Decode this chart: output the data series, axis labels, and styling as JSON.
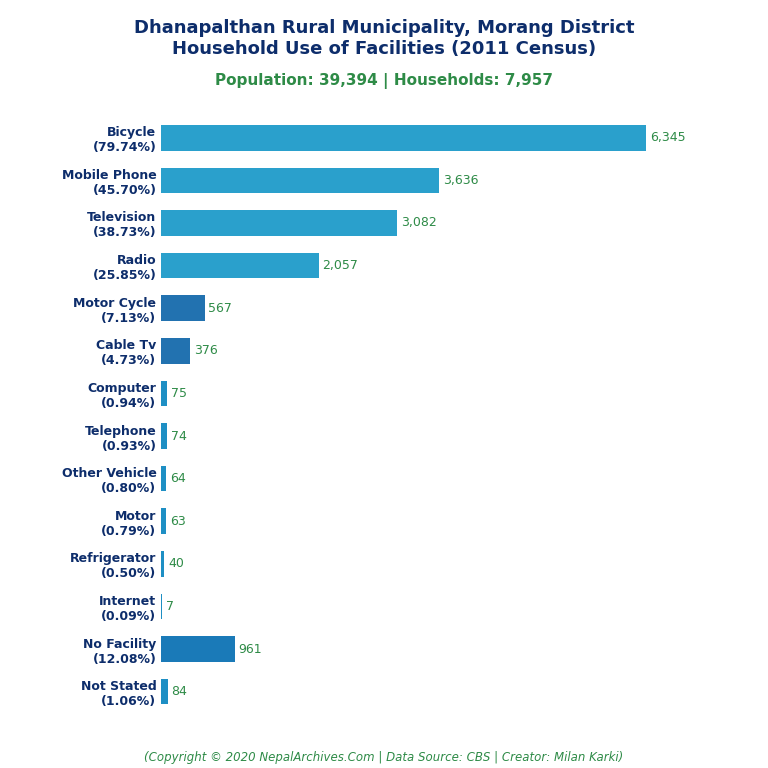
{
  "title_line1": "Dhanapalthan Rural Municipality, Morang District",
  "title_line2": "Household Use of Facilities (2011 Census)",
  "subtitle": "Population: 39,394 | Households: 7,957",
  "footer": "(Copyright © 2020 NepalArchives.Com | Data Source: CBS | Creator: Milan Karki)",
  "categories": [
    "Not Stated\n(1.06%)",
    "No Facility\n(12.08%)",
    "Internet\n(0.09%)",
    "Refrigerator\n(0.50%)",
    "Motor\n(0.79%)",
    "Other Vehicle\n(0.80%)",
    "Telephone\n(0.93%)",
    "Computer\n(0.94%)",
    "Cable Tv\n(4.73%)",
    "Motor Cycle\n(7.13%)",
    "Radio\n(25.85%)",
    "Television\n(38.73%)",
    "Mobile Phone\n(45.70%)",
    "Bicycle\n(79.74%)"
  ],
  "values": [
    84,
    961,
    7,
    40,
    63,
    64,
    74,
    75,
    376,
    567,
    2057,
    3082,
    3636,
    6345
  ],
  "bar_colors": [
    "#1e8fc4",
    "#1a7ab8",
    "#1e8fc4",
    "#1e8fc4",
    "#1e8fc4",
    "#1e8fc4",
    "#1e8fc4",
    "#1e8fc4",
    "#2272b0",
    "#2272b0",
    "#2aa0cc",
    "#2aa0cc",
    "#2aa0cc",
    "#2aa0cc"
  ],
  "title_color": "#0d2d6b",
  "subtitle_color": "#2e8b47",
  "label_color": "#0d2d6b",
  "value_color": "#2e8b47",
  "footer_color": "#2e8b47",
  "bg_color": "#ffffff",
  "title_fontsize": 13,
  "subtitle_fontsize": 11,
  "label_fontsize": 9,
  "value_fontsize": 9,
  "footer_fontsize": 8.5
}
